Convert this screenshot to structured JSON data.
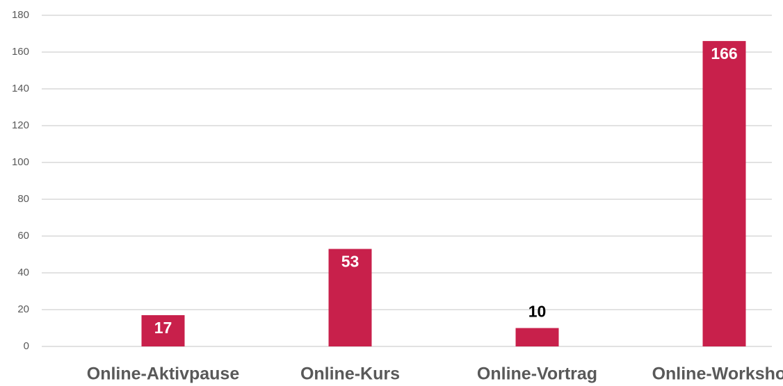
{
  "chart_data": {
    "type": "bar",
    "categories": [
      "Online-Aktivpause",
      "Online-Kurs",
      "Online-Vortrag",
      "Online-Workshop"
    ],
    "values": [
      17,
      53,
      10,
      166
    ],
    "color": "#c8204b",
    "ylim": [
      0,
      180
    ],
    "yticks": [
      0,
      20,
      40,
      60,
      80,
      100,
      120,
      140,
      160,
      180
    ],
    "grid": true
  }
}
